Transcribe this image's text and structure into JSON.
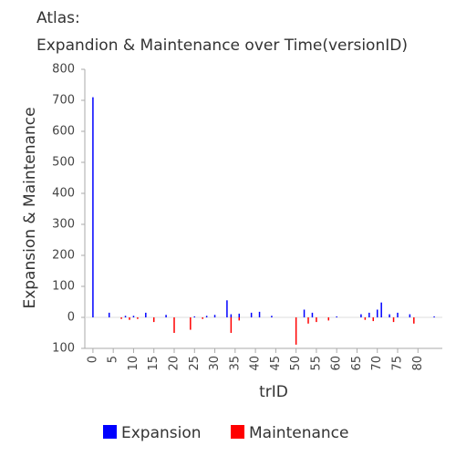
{
  "chart_data": {
    "type": "bar",
    "title": "Atlas:",
    "subtitle": "Expandion & Maintenance over Time(versionID)",
    "x_label": "trID",
    "y_label": "Expansion & Maintenance",
    "xlim": [
      -2,
      86
    ],
    "xticks": [
      0,
      5,
      10,
      15,
      20,
      25,
      30,
      35,
      40,
      45,
      50,
      55,
      60,
      65,
      70,
      75,
      80
    ],
    "ylim": [
      -100,
      800
    ],
    "yticks": [
      {
        "value": -100,
        "label": "100"
      },
      0,
      100,
      200,
      300,
      400,
      500,
      600,
      700,
      800
    ],
    "legend": "bottom",
    "series": [
      {
        "name": "Expansion",
        "color": "#0000ff",
        "x": [
          0,
          4,
          8,
          10,
          13,
          18,
          25,
          28,
          30,
          33,
          34,
          36,
          39,
          41,
          44,
          52,
          54,
          60,
          66,
          68,
          70,
          71,
          73,
          75,
          78,
          84
        ],
        "values": [
          710,
          15,
          5,
          5,
          15,
          8,
          3,
          5,
          8,
          55,
          10,
          12,
          15,
          18,
          5,
          25,
          15,
          3,
          10,
          15,
          25,
          48,
          10,
          15,
          10,
          3
        ]
      },
      {
        "name": "Maintenance",
        "color": "#ff0000",
        "x": [
          7,
          9,
          11,
          15,
          20,
          24,
          27,
          34,
          36,
          50,
          53,
          55,
          58,
          67,
          69,
          74,
          79
        ],
        "values": [
          -5,
          -8,
          -5,
          -15,
          -50,
          -40,
          -5,
          -50,
          -10,
          -88,
          -20,
          -15,
          -10,
          -8,
          -12,
          -15,
          -20
        ]
      }
    ]
  }
}
